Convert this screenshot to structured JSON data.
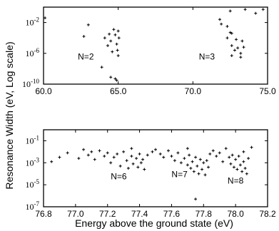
{
  "figure": {
    "xlabel": "Energy above the ground state (eV)",
    "ylabel": "Resonance Width (eV, Log scale)"
  },
  "chart_data": [
    {
      "type": "scatter",
      "xlim": [
        60.0,
        75.0
      ],
      "ylim_log10": [
        -10,
        0
      ],
      "log_y": true,
      "x_ticks": [
        60.0,
        65.0,
        70.0,
        75.0
      ],
      "x_tick_labels": [
        "60.0",
        "65.0",
        "70.0",
        "75.0"
      ],
      "y_tick_exps": [
        -2,
        -6,
        -10
      ],
      "y_tick_labels": [
        {
          "base": "10",
          "exp": "-2"
        },
        {
          "base": "10",
          "exp": "-6"
        },
        {
          "base": "10",
          "exp": "-10"
        }
      ],
      "annotations": [
        {
          "text": "N=2",
          "x": 62.3,
          "y_log10": -6.8
        },
        {
          "text": "N=3",
          "x": 70.4,
          "y_log10": -6.8
        }
      ],
      "points": [
        [
          60.1,
          -1.4
        ],
        [
          62.7,
          -3.8
        ],
        [
          63.0,
          -2.3
        ],
        [
          64.1,
          -4.0
        ],
        [
          64.3,
          -5.0
        ],
        [
          63.9,
          -7.8
        ],
        [
          64.4,
          -3.5
        ],
        [
          64.5,
          -4.4
        ],
        [
          64.6,
          -5.8
        ],
        [
          64.5,
          -9.1
        ],
        [
          64.7,
          -2.9
        ],
        [
          64.8,
          -3.6
        ],
        [
          64.9,
          -4.8
        ],
        [
          64.95,
          -5.6
        ],
        [
          65.0,
          -6.3
        ],
        [
          64.8,
          -9.3
        ],
        [
          65.0,
          -3.1
        ],
        [
          65.05,
          -4.0
        ],
        [
          64.9,
          -9.5
        ],
        [
          72.5,
          -0.5
        ],
        [
          73.5,
          -0.3
        ],
        [
          74.2,
          -0.8
        ],
        [
          74.7,
          -0.3
        ],
        [
          71.8,
          -1.6
        ],
        [
          72.3,
          -2.5
        ],
        [
          72.6,
          -3.4
        ],
        [
          72.9,
          -4.2
        ],
        [
          72.3,
          -4.0
        ],
        [
          72.6,
          -5.0
        ],
        [
          73.0,
          -5.3
        ],
        [
          71.9,
          -2.2
        ],
        [
          72.6,
          -6.3
        ],
        [
          72.8,
          -5.6
        ],
        [
          73.2,
          -6.0
        ],
        [
          72.5,
          -3.3
        ],
        [
          73.4,
          -5.2
        ],
        [
          73.2,
          -6.5
        ],
        [
          73.3,
          -4.4
        ]
      ]
    },
    {
      "type": "scatter",
      "xlim": [
        76.8,
        78.2
      ],
      "ylim_log10": [
        -7,
        0
      ],
      "log_y": true,
      "x_ticks": [
        76.8,
        77.0,
        77.2,
        77.4,
        77.6,
        77.8,
        78.0,
        78.2
      ],
      "x_tick_labels": [
        "76.8",
        "77.0",
        "77.2",
        "77.4",
        "77.6",
        "77.8",
        "78.0",
        "78.2"
      ],
      "y_tick_exps": [
        -1,
        -3,
        -5,
        -7
      ],
      "y_tick_labels": [
        {
          "base": "10",
          "exp": "-1"
        },
        {
          "base": "10",
          "exp": "-3"
        },
        {
          "base": "10",
          "exp": "-5"
        },
        {
          "base": "10",
          "exp": "-7"
        }
      ],
      "annotations": [
        {
          "text": "N=6",
          "x": 77.22,
          "y_log10": -4.5
        },
        {
          "text": "N=7",
          "x": 77.6,
          "y_log10": -4.3
        },
        {
          "text": "N=8",
          "x": 77.95,
          "y_log10": -4.9
        }
      ],
      "points": [
        [
          76.85,
          -2.9
        ],
        [
          76.9,
          -2.5
        ],
        [
          76.95,
          -2.1
        ],
        [
          77.02,
          -2.6
        ],
        [
          77.05,
          -1.8
        ],
        [
          77.08,
          -2.3
        ],
        [
          77.1,
          -2.0
        ],
        [
          77.12,
          -2.7
        ],
        [
          77.15,
          -1.9
        ],
        [
          77.18,
          -2.4
        ],
        [
          77.2,
          -2.1
        ],
        [
          77.22,
          -3.0
        ],
        [
          77.24,
          -2.5
        ],
        [
          77.26,
          -2.2
        ],
        [
          77.28,
          -3.3
        ],
        [
          77.3,
          -2.0
        ],
        [
          77.32,
          -2.8
        ],
        [
          77.33,
          -3.5
        ],
        [
          77.35,
          -2.4
        ],
        [
          77.36,
          -3.1
        ],
        [
          77.38,
          -2.6
        ],
        [
          77.39,
          -3.4
        ],
        [
          77.4,
          -2.2
        ],
        [
          77.41,
          -3.0
        ],
        [
          77.42,
          -2.7
        ],
        [
          77.43,
          -3.6
        ],
        [
          77.45,
          -2.3
        ],
        [
          77.48,
          -2.0
        ],
        [
          77.5,
          -1.8
        ],
        [
          77.53,
          -2.2
        ],
        [
          77.55,
          -2.5
        ],
        [
          77.58,
          -1.9
        ],
        [
          77.6,
          -2.4
        ],
        [
          77.62,
          -2.8
        ],
        [
          77.64,
          -2.1
        ],
        [
          77.66,
          -3.0
        ],
        [
          77.68,
          -2.6
        ],
        [
          77.7,
          -3.2
        ],
        [
          77.71,
          -2.3
        ],
        [
          77.72,
          -3.5
        ],
        [
          77.73,
          -2.9
        ],
        [
          77.74,
          -3.8
        ],
        [
          77.75,
          -2.5
        ],
        [
          77.76,
          -3.3
        ],
        [
          77.77,
          -4.0
        ],
        [
          77.78,
          -2.7
        ],
        [
          77.79,
          -3.6
        ],
        [
          77.8,
          -3.0
        ],
        [
          77.81,
          -4.1
        ],
        [
          77.82,
          -2.8
        ],
        [
          77.83,
          -3.4
        ],
        [
          77.84,
          -2.2
        ],
        [
          77.75,
          -6.3
        ],
        [
          77.86,
          -1.9
        ],
        [
          77.88,
          -2.4
        ],
        [
          77.9,
          -2.1
        ],
        [
          77.92,
          -2.9
        ],
        [
          77.94,
          -1.7
        ],
        [
          77.96,
          -2.5
        ],
        [
          77.97,
          -3.1
        ],
        [
          77.98,
          -2.3
        ],
        [
          77.99,
          -3.4
        ],
        [
          78.0,
          -2.7
        ],
        [
          78.01,
          -3.6
        ],
        [
          78.02,
          -2.4
        ],
        [
          78.03,
          -3.2
        ],
        [
          78.04,
          -3.8
        ],
        [
          78.05,
          -2.9
        ],
        [
          78.06,
          -3.5
        ],
        [
          78.07,
          -4.0
        ],
        [
          78.08,
          -2.6
        ],
        [
          78.05,
          -2.0
        ],
        [
          78.1,
          -1.6
        ],
        [
          77.7,
          -1.7
        ],
        [
          77.35,
          -1.7
        ]
      ]
    }
  ]
}
